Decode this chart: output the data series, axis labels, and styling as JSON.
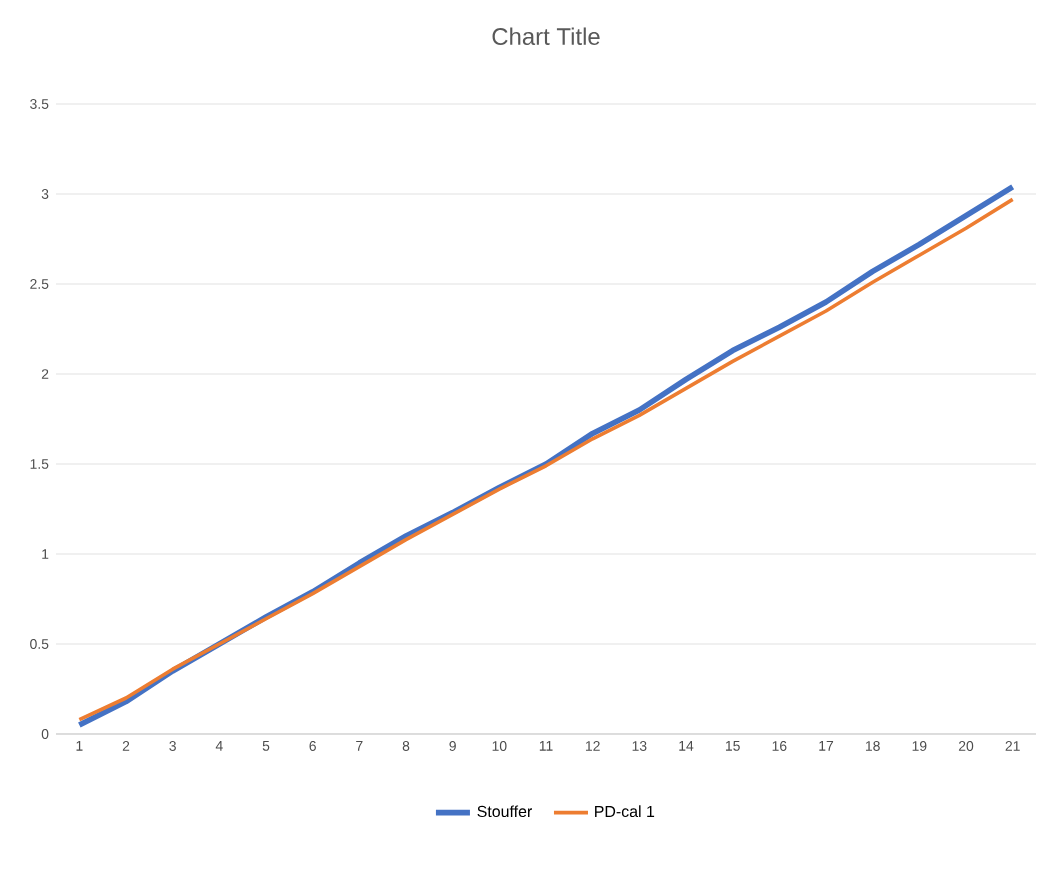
{
  "chart_data": {
    "type": "line",
    "title": "Chart Title",
    "categories": [
      "1",
      "2",
      "3",
      "4",
      "5",
      "6",
      "7",
      "8",
      "9",
      "10",
      "11",
      "12",
      "13",
      "14",
      "15",
      "16",
      "17",
      "18",
      "19",
      "20",
      "21"
    ],
    "series": [
      {
        "name": "Stouffer",
        "color": "#4472c4",
        "values": [
          0.05,
          0.18,
          0.35,
          0.5,
          0.65,
          0.79,
          0.95,
          1.1,
          1.23,
          1.37,
          1.5,
          1.67,
          1.8,
          1.97,
          2.13,
          2.26,
          2.4,
          2.57,
          2.72,
          2.88,
          3.04
        ]
      },
      {
        "name": "PD-cal 1",
        "color": "#ed7d31",
        "values": [
          0.08,
          0.2,
          0.36,
          0.5,
          0.64,
          0.78,
          0.93,
          1.08,
          1.22,
          1.36,
          1.49,
          1.64,
          1.77,
          1.92,
          2.07,
          2.21,
          2.35,
          2.51,
          2.66,
          2.81,
          2.97
        ]
      }
    ],
    "ylim": [
      0,
      3.5
    ],
    "yticks": [
      0,
      0.5,
      1,
      1.5,
      2,
      2.5,
      3,
      3.5
    ],
    "grid": "y",
    "legend": "bottom",
    "marker": "none",
    "line_style": "solid"
  }
}
